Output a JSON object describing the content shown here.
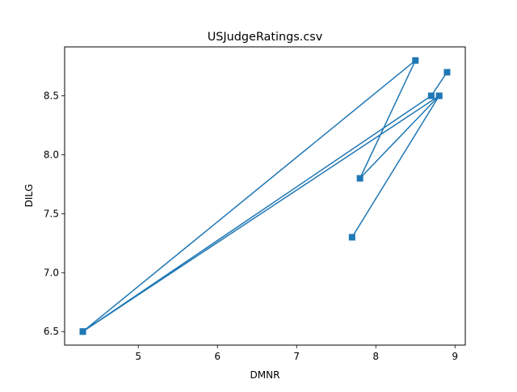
{
  "chart_data": {
    "type": "line",
    "title": "USJudgeRatings.csv",
    "xlabel": "DMNR",
    "ylabel": "DILG",
    "xlim": [
      4.07,
      9.13
    ],
    "ylim": [
      6.385,
      8.915
    ],
    "xticks": [
      5,
      6,
      7,
      8,
      9
    ],
    "yticks": [
      6.5,
      7.0,
      7.5,
      8.0,
      8.5
    ],
    "xtick_labels": [
      "5",
      "6",
      "7",
      "8",
      "9"
    ],
    "ytick_labels": [
      "6.5",
      "7.0",
      "7.5",
      "8.0",
      "8.5"
    ],
    "grid": false,
    "marker": "square",
    "series": [
      {
        "x": [
          7.7,
          8.8,
          4.3,
          8.5,
          7.8,
          8.8,
          4.3,
          8.7,
          8.9
        ],
        "y": [
          7.3,
          8.5,
          6.5,
          8.8,
          7.8,
          8.5,
          6.5,
          8.5,
          8.7
        ],
        "color": "#1f77b4"
      }
    ]
  }
}
